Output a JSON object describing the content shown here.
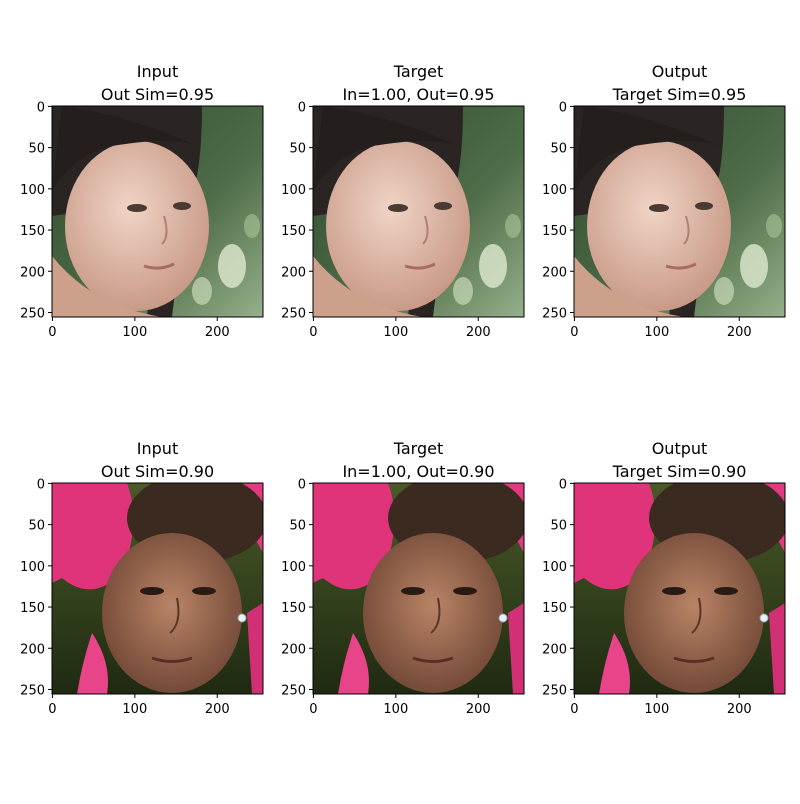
{
  "panels": [
    {
      "title_line1": "Input",
      "title_line2": "Out Sim=0.95",
      "subject": "young woman with dark hair, green bokeh background"
    },
    {
      "title_line1": "Target",
      "title_line2": "In=1.00, Out=0.95",
      "subject": "young woman with dark hair, green bokeh background"
    },
    {
      "title_line1": "Output",
      "title_line2": "Target Sim=0.95",
      "subject": "young woman with dark hair, green bokeh background"
    },
    {
      "title_line1": "Input",
      "title_line2": "Out Sim=0.90",
      "subject": "woman with pink feathered headdress, earring"
    },
    {
      "title_line1": "Target",
      "title_line2": "In=1.00, Out=0.90",
      "subject": "woman with pink feathered headdress, earring"
    },
    {
      "title_line1": "Output",
      "title_line2": "Target Sim=0.90",
      "subject": "woman with pink feathered headdress, earring"
    }
  ],
  "axes": {
    "xticks": [
      "0",
      "100",
      "200"
    ],
    "yticks": [
      "0",
      "50",
      "100",
      "150",
      "200",
      "250"
    ]
  },
  "colors": {
    "row1_bg_top": "#3e5a3c",
    "row1_bg_bottom": "#7fa07a",
    "row1_hair": "#2a2522",
    "row1_skin": "#e3bfae",
    "row2_bg": "#3b4a22",
    "row2_feathers": "#e0347a",
    "row2_hair": "#3a2a20",
    "row2_skin": "#9a6a52"
  }
}
